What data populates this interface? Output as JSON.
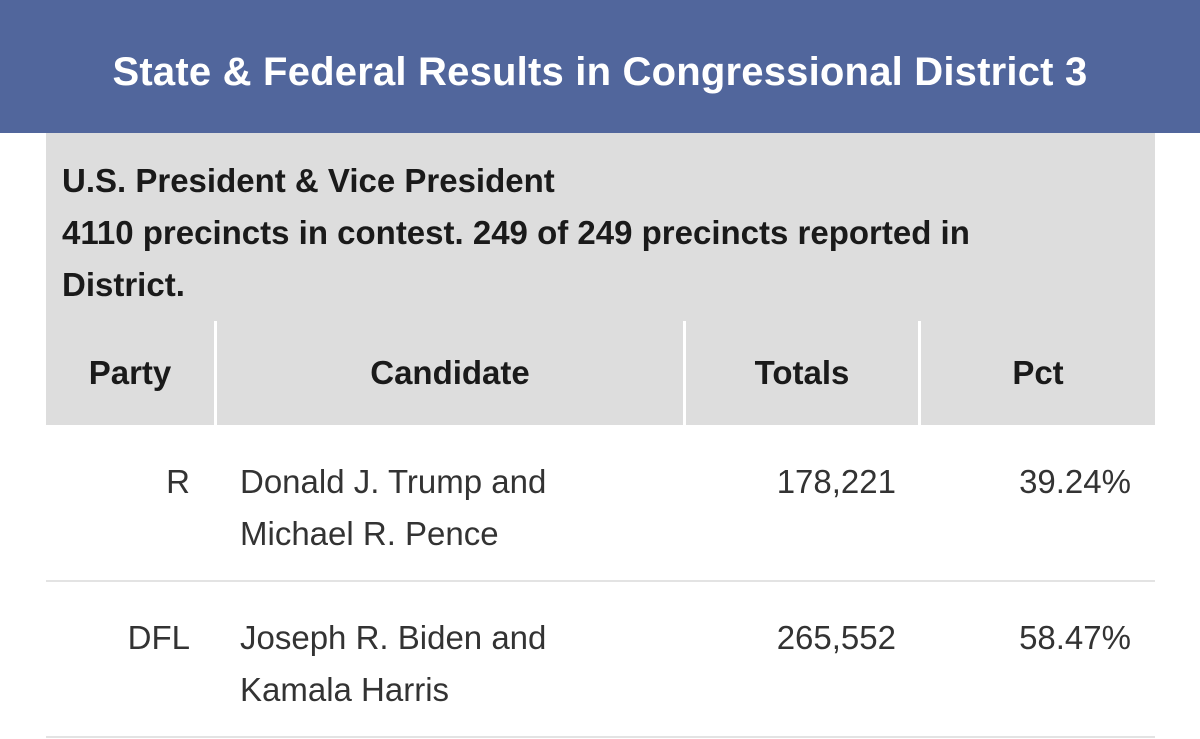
{
  "header": {
    "title": "State & Federal Results in Congressional District 3"
  },
  "contest": {
    "title": "U.S. President & Vice President",
    "info": "4110 precincts in contest. 249 of 249 precincts reported in District."
  },
  "table": {
    "headers": {
      "party": "Party",
      "candidate": "Candidate",
      "totals": "Totals",
      "pct": "Pct"
    },
    "rows": [
      {
        "party": "R",
        "candidate_line1": "Donald J. Trump and",
        "candidate_line2": "Michael R. Pence",
        "totals": "178,221",
        "pct": "39.24%"
      },
      {
        "party": "DFL",
        "candidate_line1": "Joseph R. Biden and",
        "candidate_line2": "Kamala Harris",
        "totals": "265,552",
        "pct": "58.47%"
      }
    ]
  },
  "colors": {
    "header_bg": "#51669c",
    "gray_bg": "#dddddd"
  }
}
